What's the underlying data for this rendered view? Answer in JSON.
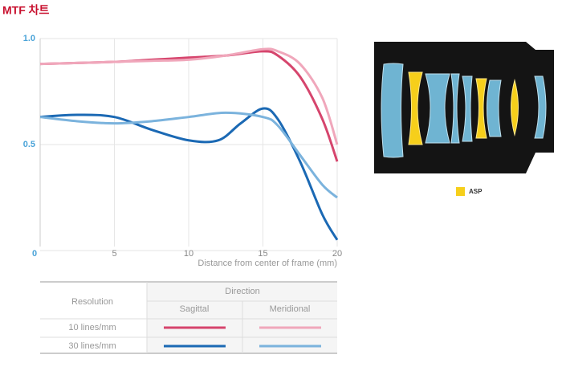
{
  "chart_data": {
    "type": "line",
    "title": "MTF 차트",
    "x_label": "Distance from center of frame (mm)",
    "xlim": [
      0,
      20
    ],
    "xticks": [
      0,
      5,
      10,
      15,
      20
    ],
    "ylim": [
      0,
      1
    ],
    "yticks": [
      0,
      0.5,
      {
        "value": 1,
        "label": "1.0"
      }
    ],
    "grid": true,
    "series": [
      {
        "color": "#d6456d",
        "x": [
          0,
          2.5,
          5,
          7.5,
          10,
          12.5,
          15,
          16,
          17.5,
          19,
          20
        ],
        "values": [
          0.88,
          0.885,
          0.89,
          0.9,
          0.91,
          0.92,
          0.94,
          0.92,
          0.82,
          0.62,
          0.42
        ]
      },
      {
        "color": "#f0a7bb",
        "x": [
          0,
          2.5,
          5,
          7.5,
          10,
          12.5,
          15,
          16,
          17.5,
          19,
          20
        ],
        "values": [
          0.88,
          0.885,
          0.89,
          0.895,
          0.9,
          0.92,
          0.95,
          0.94,
          0.88,
          0.72,
          0.5
        ]
      },
      {
        "color": "#1b69b4",
        "x": [
          0,
          2.5,
          5,
          7.5,
          10,
          12,
          13.5,
          15,
          16,
          17.5,
          19,
          20
        ],
        "values": [
          0.63,
          0.64,
          0.63,
          0.57,
          0.52,
          0.52,
          0.6,
          0.67,
          0.62,
          0.42,
          0.17,
          0.05
        ]
      },
      {
        "color": "#7bb3dd",
        "x": [
          0,
          2.5,
          5,
          7.5,
          10,
          12.5,
          15,
          16,
          17.5,
          19,
          20
        ],
        "values": [
          0.63,
          0.61,
          0.6,
          0.61,
          0.63,
          0.65,
          0.63,
          0.59,
          0.45,
          0.31,
          0.25
        ]
      }
    ],
    "legend_table": {
      "row_header": "Resolution",
      "column_header": "Direction",
      "columns": [
        "Sagittal",
        "Meridional"
      ],
      "rows": [
        "10 lines/mm",
        "30 lines/mm"
      ]
    }
  },
  "diagram": {
    "legend_label": "ASP"
  }
}
